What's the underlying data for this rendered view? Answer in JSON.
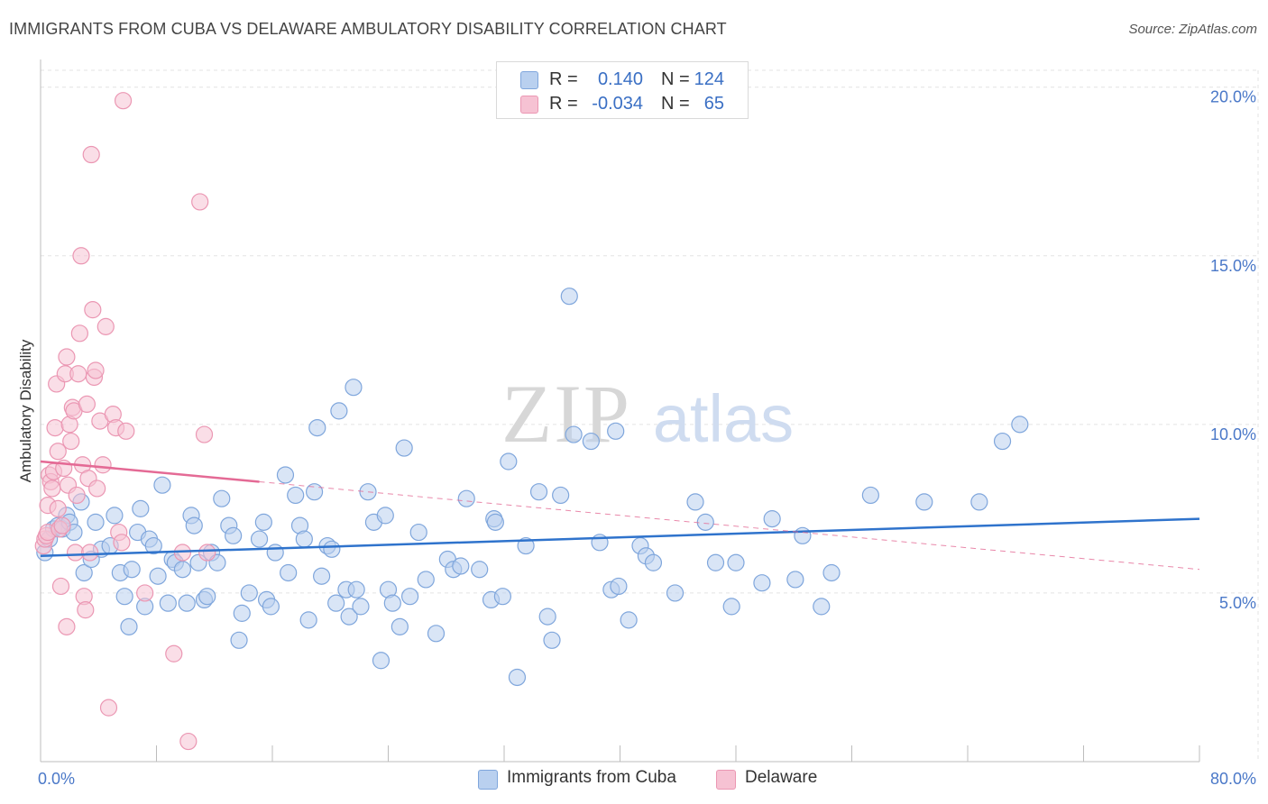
{
  "title": "IMMIGRANTS FROM CUBA VS DELAWARE AMBULATORY DISABILITY CORRELATION CHART",
  "source": "Source: ZipAtlas.com",
  "watermark": {
    "zip": "ZIP",
    "atlas": "atlas"
  },
  "colors": {
    "blue_fill": "#b9d0ef",
    "blue_stroke": "#7fa6dc",
    "blue_line": "#2f73cc",
    "pink_fill": "#f6c2d3",
    "pink_stroke": "#eb97b3",
    "pink_line": "#e46a95",
    "grid": "#e3e3e3",
    "axis_label": "#4a78c8"
  },
  "legend_top": [
    {
      "swatch": "blue",
      "r_label": "R =",
      "r_value": "0.140",
      "n_label": "N =",
      "n_value": "124"
    },
    {
      "swatch": "pink",
      "r_label": "R =",
      "r_value": "-0.034",
      "n_label": "N =",
      "n_value": "65"
    }
  ],
  "legend_bottom": [
    {
      "swatch": "blue",
      "label": "Immigrants from Cuba"
    },
    {
      "swatch": "pink",
      "label": "Delaware"
    }
  ],
  "chart_data": {
    "type": "scatter",
    "title": "IMMIGRANTS FROM CUBA VS DELAWARE AMBULATORY DISABILITY CORRELATION CHART",
    "xlabel": "",
    "ylabel": "Ambulatory Disability",
    "xlim": [
      0,
      80
    ],
    "ylim": [
      0,
      20.5
    ],
    "x_tick_labels": [
      {
        "value": 0,
        "label": "0.0%"
      },
      {
        "value": 80,
        "label": "80.0%"
      }
    ],
    "x_minor_ticks": [
      0,
      8,
      16,
      24,
      32,
      40,
      48,
      56,
      64,
      72,
      80
    ],
    "y_ticks": [
      {
        "value": 5,
        "label": "5.0%"
      },
      {
        "value": 10,
        "label": "10.0%"
      },
      {
        "value": 15,
        "label": "15.0%"
      },
      {
        "value": 20,
        "label": "20.0%"
      }
    ],
    "grid": true,
    "legend_position": "top-center",
    "series": [
      {
        "name": "Immigrants from Cuba",
        "color": "blue",
        "R": 0.14,
        "N": 124,
        "trend": {
          "x": [
            0,
            80
          ],
          "y": [
            6.1,
            7.2
          ],
          "style": "solid"
        },
        "points": [
          [
            0.3,
            6.2
          ],
          [
            0.6,
            6.6
          ],
          [
            0.9,
            6.9
          ],
          [
            1.2,
            7.0
          ],
          [
            1.5,
            6.9
          ],
          [
            1.8,
            7.3
          ],
          [
            2.0,
            7.1
          ],
          [
            2.3,
            6.8
          ],
          [
            2.8,
            7.7
          ],
          [
            3.0,
            5.6
          ],
          [
            3.5,
            6.0
          ],
          [
            3.8,
            7.1
          ],
          [
            4.2,
            6.3
          ],
          [
            4.8,
            6.4
          ],
          [
            5.1,
            7.3
          ],
          [
            5.5,
            5.6
          ],
          [
            5.8,
            4.9
          ],
          [
            6.1,
            4.0
          ],
          [
            6.3,
            5.7
          ],
          [
            6.7,
            6.8
          ],
          [
            6.9,
            7.5
          ],
          [
            7.2,
            4.6
          ],
          [
            7.5,
            6.6
          ],
          [
            7.8,
            6.4
          ],
          [
            8.1,
            5.5
          ],
          [
            8.4,
            8.2
          ],
          [
            8.8,
            4.7
          ],
          [
            9.1,
            6.0
          ],
          [
            9.3,
            5.9
          ],
          [
            9.8,
            5.7
          ],
          [
            10.1,
            4.7
          ],
          [
            10.4,
            7.3
          ],
          [
            10.6,
            7.0
          ],
          [
            10.9,
            5.9
          ],
          [
            11.3,
            4.8
          ],
          [
            11.5,
            4.9
          ],
          [
            11.8,
            6.2
          ],
          [
            12.2,
            5.9
          ],
          [
            12.5,
            7.8
          ],
          [
            13.0,
            7.0
          ],
          [
            13.3,
            6.7
          ],
          [
            13.7,
            3.6
          ],
          [
            13.9,
            4.4
          ],
          [
            14.4,
            5.0
          ],
          [
            15.1,
            6.6
          ],
          [
            15.4,
            7.1
          ],
          [
            15.6,
            4.8
          ],
          [
            15.9,
            4.6
          ],
          [
            16.2,
            6.2
          ],
          [
            16.9,
            8.5
          ],
          [
            17.1,
            5.6
          ],
          [
            17.6,
            7.9
          ],
          [
            17.9,
            7.0
          ],
          [
            18.2,
            6.6
          ],
          [
            18.5,
            4.2
          ],
          [
            18.9,
            8.0
          ],
          [
            19.1,
            9.9
          ],
          [
            19.4,
            5.5
          ],
          [
            19.8,
            6.4
          ],
          [
            20.1,
            6.3
          ],
          [
            20.4,
            4.7
          ],
          [
            20.6,
            10.4
          ],
          [
            21.1,
            5.1
          ],
          [
            21.3,
            4.3
          ],
          [
            21.6,
            11.1
          ],
          [
            21.8,
            5.1
          ],
          [
            22.1,
            4.6
          ],
          [
            22.6,
            8.0
          ],
          [
            23.0,
            7.1
          ],
          [
            23.5,
            3.0
          ],
          [
            23.8,
            7.3
          ],
          [
            24.0,
            5.1
          ],
          [
            24.3,
            4.7
          ],
          [
            24.8,
            4.0
          ],
          [
            25.1,
            9.3
          ],
          [
            25.5,
            4.9
          ],
          [
            26.1,
            6.8
          ],
          [
            26.6,
            5.4
          ],
          [
            27.3,
            3.8
          ],
          [
            28.1,
            6.0
          ],
          [
            28.5,
            5.7
          ],
          [
            29.0,
            5.8
          ],
          [
            29.4,
            7.8
          ],
          [
            30.3,
            5.7
          ],
          [
            31.1,
            4.8
          ],
          [
            31.3,
            7.2
          ],
          [
            31.4,
            7.1
          ],
          [
            31.9,
            4.9
          ],
          [
            32.3,
            8.9
          ],
          [
            32.9,
            2.5
          ],
          [
            33.5,
            6.4
          ],
          [
            34.4,
            8.0
          ],
          [
            35.0,
            4.3
          ],
          [
            35.3,
            3.6
          ],
          [
            35.9,
            7.9
          ],
          [
            36.5,
            13.8
          ],
          [
            36.8,
            9.7
          ],
          [
            38.0,
            9.5
          ],
          [
            38.6,
            6.5
          ],
          [
            39.4,
            5.1
          ],
          [
            39.7,
            9.8
          ],
          [
            39.9,
            5.2
          ],
          [
            40.6,
            4.2
          ],
          [
            41.4,
            6.4
          ],
          [
            41.8,
            6.1
          ],
          [
            42.3,
            5.9
          ],
          [
            43.8,
            5.0
          ],
          [
            45.2,
            7.7
          ],
          [
            45.9,
            7.1
          ],
          [
            46.6,
            5.9
          ],
          [
            47.7,
            4.6
          ],
          [
            48.0,
            5.9
          ],
          [
            49.8,
            5.3
          ],
          [
            50.5,
            7.2
          ],
          [
            52.1,
            5.4
          ],
          [
            52.6,
            6.7
          ],
          [
            53.9,
            4.6
          ],
          [
            54.6,
            5.6
          ],
          [
            57.3,
            7.9
          ],
          [
            61.0,
            7.7
          ],
          [
            64.8,
            7.7
          ],
          [
            66.4,
            9.5
          ],
          [
            67.6,
            10.0
          ]
        ]
      },
      {
        "name": "Delaware",
        "color": "pink",
        "R": -0.034,
        "N": 65,
        "trend": {
          "x": [
            0,
            15.1
          ],
          "y": [
            8.9,
            8.3
          ],
          "style": "solid",
          "extension": {
            "x": [
              15.1,
              80
            ],
            "y": [
              8.3,
              5.7
            ],
            "style": "dashed"
          }
        },
        "points": [
          [
            0.2,
            6.4
          ],
          [
            0.3,
            6.6
          ],
          [
            0.4,
            6.7
          ],
          [
            0.5,
            6.8
          ],
          [
            0.5,
            7.6
          ],
          [
            0.6,
            8.5
          ],
          [
            0.7,
            8.3
          ],
          [
            0.8,
            8.1
          ],
          [
            0.9,
            8.6
          ],
          [
            1.0,
            9.9
          ],
          [
            1.1,
            11.2
          ],
          [
            1.2,
            7.5
          ],
          [
            1.2,
            9.2
          ],
          [
            1.3,
            6.9
          ],
          [
            1.4,
            5.2
          ],
          [
            1.5,
            7.0
          ],
          [
            1.6,
            8.7
          ],
          [
            1.7,
            11.5
          ],
          [
            1.8,
            4.0
          ],
          [
            1.8,
            12.0
          ],
          [
            1.9,
            8.2
          ],
          [
            2.0,
            10.0
          ],
          [
            2.1,
            9.5
          ],
          [
            2.2,
            10.5
          ],
          [
            2.3,
            10.4
          ],
          [
            2.4,
            6.2
          ],
          [
            2.5,
            7.9
          ],
          [
            2.6,
            11.5
          ],
          [
            2.7,
            12.7
          ],
          [
            2.8,
            15.0
          ],
          [
            2.9,
            8.8
          ],
          [
            3.0,
            4.9
          ],
          [
            3.1,
            4.5
          ],
          [
            3.2,
            10.6
          ],
          [
            3.3,
            8.4
          ],
          [
            3.4,
            6.2
          ],
          [
            3.5,
            18.0
          ],
          [
            3.6,
            13.4
          ],
          [
            3.7,
            11.4
          ],
          [
            3.8,
            11.6
          ],
          [
            3.9,
            8.1
          ],
          [
            4.1,
            10.1
          ],
          [
            4.3,
            8.8
          ],
          [
            4.5,
            12.9
          ],
          [
            4.7,
            1.6
          ],
          [
            5.0,
            10.3
          ],
          [
            5.2,
            9.9
          ],
          [
            5.4,
            6.8
          ],
          [
            5.6,
            6.5
          ],
          [
            5.7,
            19.6
          ],
          [
            5.9,
            9.8
          ],
          [
            7.2,
            5.0
          ],
          [
            9.2,
            3.2
          ],
          [
            9.8,
            6.2
          ],
          [
            10.2,
            0.6
          ],
          [
            11.0,
            16.6
          ],
          [
            11.3,
            9.7
          ],
          [
            11.5,
            6.2
          ]
        ]
      }
    ]
  }
}
